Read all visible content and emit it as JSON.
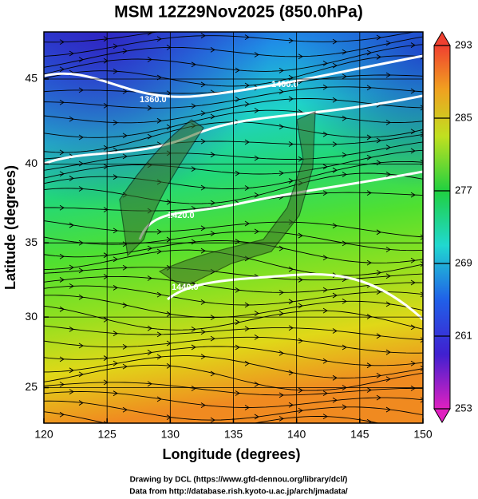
{
  "map": {
    "title": "MSM 12Z29Nov2025 (850.0hPa)",
    "x_label": "Longitude (degrees)",
    "y_label": "Latitude  (degrees)",
    "projection": "mercator",
    "xlim": [
      120,
      150
    ],
    "ylim": [
      22.4,
      47.6
    ],
    "xticks": [
      120,
      125,
      130,
      135,
      140,
      145,
      150
    ],
    "yticks": [
      25,
      30,
      35,
      40,
      45
    ],
    "grid": true,
    "colorbar": {
      "lim": [
        253,
        293
      ],
      "ticks": [
        253,
        261,
        269,
        277,
        285,
        293
      ]
    },
    "contour_labels": [
      "1360.0",
      "1400.0",
      "1420.0",
      "1440.0"
    ],
    "footer": [
      "Drawing by DCL (https://www.gfd-dennou.org/library/dcl/)",
      "Data from http://database.rish.kyoto-u.ac.jp/arch/jmadata/"
    ]
  }
}
